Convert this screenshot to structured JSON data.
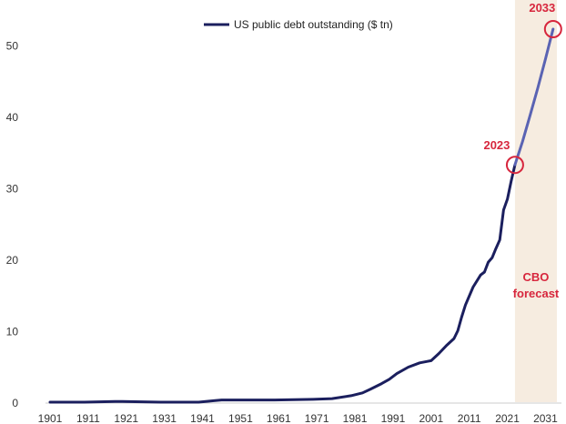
{
  "chart_data": {
    "type": "line",
    "title": "",
    "xlabel": "",
    "ylabel": "",
    "xlim": [
      1901,
      2034
    ],
    "ylim": [
      0,
      55
    ],
    "x_ticks": [
      "1901",
      "1911",
      "1921",
      "1931",
      "1941",
      "1951",
      "1961",
      "1971",
      "1981",
      "1991",
      "2001",
      "2011",
      "2021",
      "2031"
    ],
    "y_ticks": [
      "0",
      "10",
      "20",
      "30",
      "40",
      "50"
    ],
    "grid": false,
    "legend": {
      "position": "top-center",
      "entries": [
        "US public debt outstanding ($ tn)"
      ]
    },
    "series": [
      {
        "name": "US public debt outstanding ($ tn)",
        "color": "#1b1f5e",
        "x": [
          1901,
          1910,
          1918,
          1920,
          1930,
          1940,
          1944,
          1946,
          1950,
          1960,
          1970,
          1975,
          1980,
          1983,
          1985,
          1988,
          1990,
          1992,
          1995,
          1998,
          2000,
          2001,
          2003,
          2005,
          2007,
          2008,
          2009,
          2010,
          2012,
          2014,
          2015,
          2016,
          2017,
          2018,
          2019,
          2020,
          2021,
          2022,
          2023
        ],
        "values": [
          0.0,
          0.0,
          0.1,
          0.1,
          0.0,
          0.0,
          0.2,
          0.3,
          0.3,
          0.3,
          0.4,
          0.5,
          0.9,
          1.3,
          1.8,
          2.6,
          3.2,
          4.0,
          4.9,
          5.5,
          5.7,
          5.8,
          6.8,
          7.9,
          8.9,
          10.0,
          11.9,
          13.6,
          16.1,
          17.8,
          18.2,
          19.6,
          20.2,
          21.5,
          22.7,
          26.9,
          28.4,
          30.9,
          33.2
        ]
      },
      {
        "name": "",
        "color": "#5a63b3",
        "x": [
          2023,
          2025,
          2027,
          2029,
          2031,
          2033
        ],
        "values": [
          33.2,
          36.5,
          40.2,
          44.0,
          48.0,
          52.2
        ]
      }
    ],
    "forecast_region": {
      "start": 2023,
      "end": 2034,
      "color": "#f6ece0",
      "label_line1": "CBO",
      "label_line2": "forecast"
    },
    "annotations": [
      {
        "label": "2023",
        "x": 2023,
        "y": 33.2,
        "color": "#d7263d"
      },
      {
        "label": "2033",
        "x": 2033,
        "y": 52.2,
        "color": "#d7263d"
      }
    ]
  }
}
